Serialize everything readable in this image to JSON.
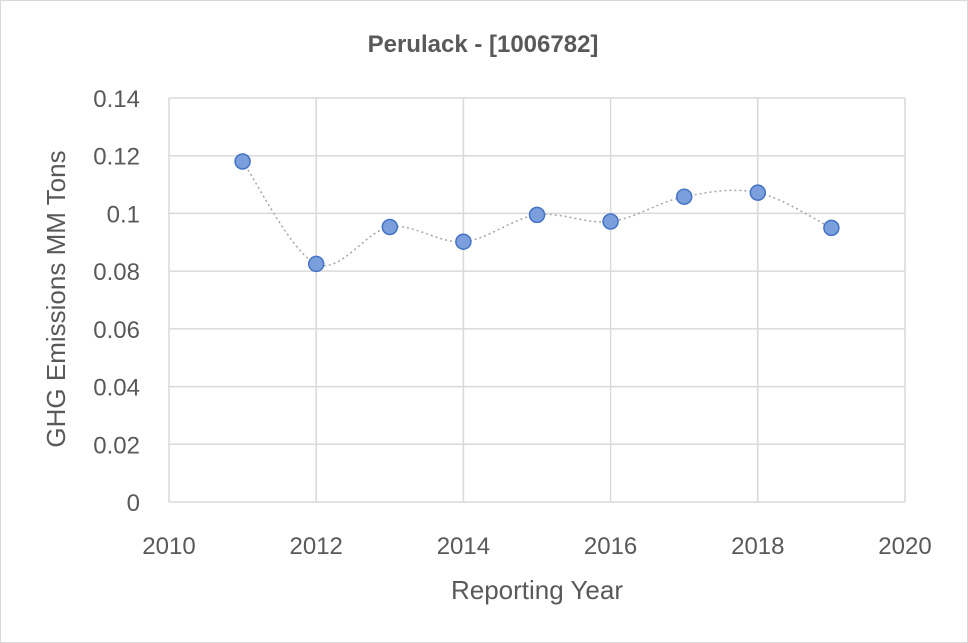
{
  "chart_data": {
    "type": "scatter",
    "title": "Perulack - [1006782]",
    "xlabel": "Reporting Year",
    "ylabel": "GHG Emissions MM Tons",
    "xlim": [
      2010,
      2020
    ],
    "ylim": [
      0,
      0.14
    ],
    "xticks": [
      "2010",
      "2012",
      "2014",
      "2016",
      "2018",
      "2020"
    ],
    "yticks": [
      "0",
      "0.02",
      "0.04",
      "0.06",
      "0.08",
      "0.1",
      "0.12",
      "0.14"
    ],
    "grid": true,
    "smooth_line": true,
    "series": [
      {
        "x": [
          2011,
          2012,
          2013,
          2014,
          2015,
          2016,
          2017,
          2018,
          2019
        ],
        "y": [
          0.118,
          0.0825,
          0.0953,
          0.0902,
          0.0995,
          0.0972,
          0.1058,
          0.1072,
          0.095
        ]
      }
    ],
    "marker_color": "#7a9fdc",
    "marker_edge_color": "#4472c4",
    "line_color": "#a6a6a6"
  }
}
